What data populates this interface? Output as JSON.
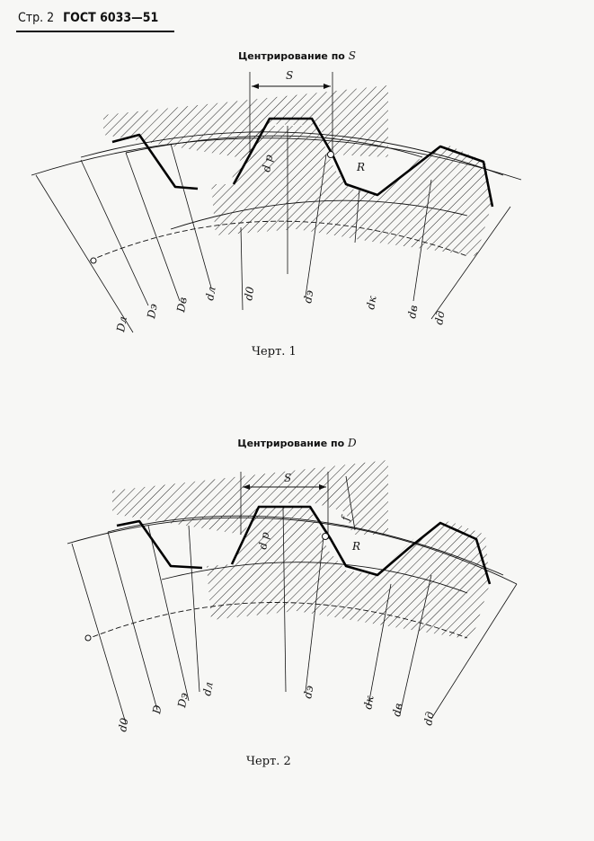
{
  "header": {
    "page_prefix": "Стр. 2",
    "standard": "ГОСТ 6033—51"
  },
  "figure1": {
    "title": "Центрирование по",
    "title_var": "S",
    "caption": "Черт. 1",
    "labels": {
      "S": "S",
      "R": "R",
      "dp": "d p",
      "Dl": "Dл",
      "De": "Dэ",
      "Dv": "Dв",
      "dl": "dл",
      "d0": "d0",
      "de": "dэ",
      "dk": "dк",
      "dv": "dв",
      "dd": "dд"
    }
  },
  "figure2": {
    "title": "Центрирование по",
    "title_var": "D",
    "caption": "Черт. 2",
    "labels": {
      "S": "S",
      "R": "R",
      "dp": "d p",
      "f": "f",
      "d0": "d0",
      "D": "D",
      "De": "Dэ",
      "dl": "dл",
      "de": "dэ",
      "dk": "dк",
      "dv": "dв",
      "dd": "dд"
    }
  }
}
